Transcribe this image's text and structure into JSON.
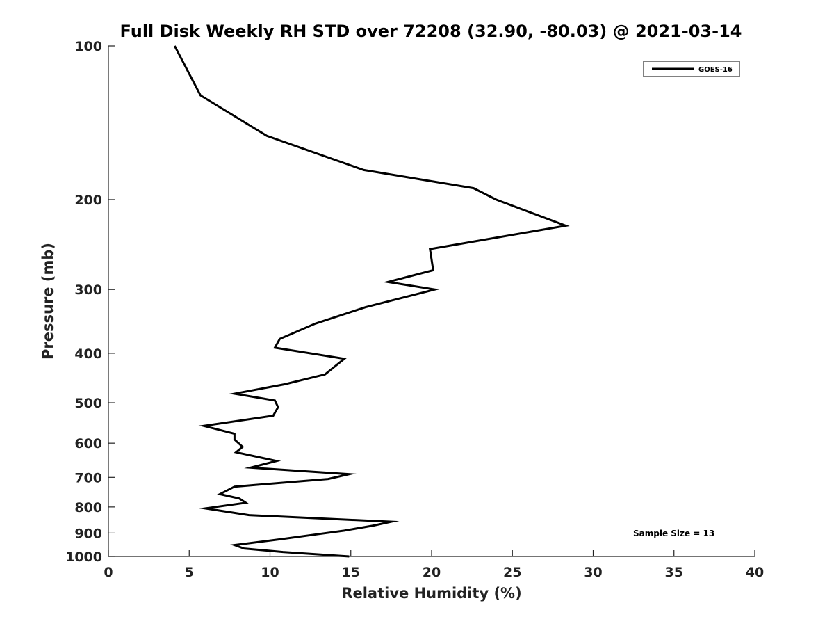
{
  "chart_data": {
    "type": "line",
    "title": "Full Disk Weekly RH STD over 72208 (32.90, -80.03) @ 2021-03-14",
    "xlabel": "Relative Humidity (%)",
    "ylabel": "Pressure (mb)",
    "xlim": [
      0,
      40
    ],
    "ylim": [
      100,
      1000
    ],
    "y_scale": "log",
    "y_reversed": true,
    "x_ticks": [
      "0",
      "5",
      "10",
      "15",
      "20",
      "25",
      "30",
      "35",
      "40"
    ],
    "y_ticks": [
      "100",
      "200",
      "300",
      "400",
      "500",
      "600",
      "700",
      "800",
      "900",
      "1000"
    ],
    "grid": false,
    "legend_position": "top-right",
    "annotation": "Sample Size = 13",
    "series": [
      {
        "name": "GOES-16",
        "color": "#000000",
        "x": [
          4.1,
          5.7,
          9.8,
          15.8,
          22.6,
          24.0,
          28.3,
          19.9,
          20.1,
          17.3,
          20.2,
          15.9,
          12.8,
          10.6,
          10.3,
          14.6,
          13.4,
          10.9,
          7.8,
          10.3,
          10.5,
          10.2,
          5.9,
          7.8,
          7.8,
          8.3,
          7.9,
          10.4,
          8.8,
          14.9,
          13.6,
          7.8,
          6.9,
          8.1,
          8.5,
          6.0,
          8.7,
          17.5,
          16.4,
          14.6,
          12.9,
          10.7,
          7.8,
          8.4,
          10.8,
          14.9
        ],
        "y": [
          100,
          125,
          150,
          175,
          190,
          200,
          225,
          250,
          275,
          290,
          300,
          325,
          350,
          375,
          390,
          410,
          440,
          460,
          480,
          495,
          510,
          530,
          555,
          575,
          590,
          610,
          625,
          650,
          670,
          690,
          705,
          730,
          755,
          770,
          785,
          805,
          830,
          855,
          870,
          890,
          905,
          925,
          950,
          965,
          980,
          1000
        ]
      }
    ]
  }
}
